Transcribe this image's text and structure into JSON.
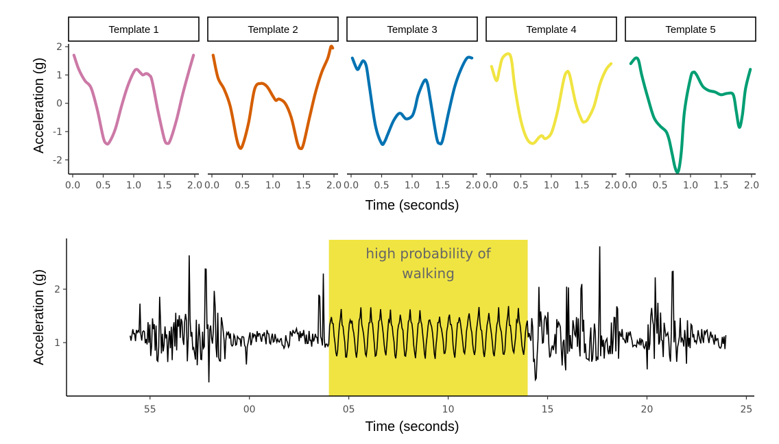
{
  "colors": {
    "template_1": "#CC79A7",
    "template_2": "#D55E00",
    "template_3": "#0072B2",
    "template_4": "#F0E442",
    "template_5": "#009E73",
    "highlight": "#F0E442",
    "signal": "#000000",
    "annotation_text": "#666666"
  },
  "chart_data": [
    {
      "type": "line",
      "facet": "templates",
      "ylabel": "Acceleration (g)",
      "xlabel": "Time (seconds)",
      "xlim": [
        0,
        2
      ],
      "ylim": [
        -2.5,
        2.1
      ],
      "x_ticks": [
        "0.0",
        "0.5",
        "1.0",
        "1.5",
        "2.0"
      ],
      "y_ticks": [
        "-2",
        "-1",
        "0",
        "1",
        "2"
      ],
      "grid": false,
      "panels": [
        {
          "name": "Template 1",
          "x": [
            0.02,
            0.1,
            0.2,
            0.3,
            0.4,
            0.5,
            0.55,
            0.6,
            0.7,
            0.8,
            0.9,
            1.0,
            1.05,
            1.1,
            1.15,
            1.2,
            1.25,
            1.3,
            1.4,
            1.5,
            1.55,
            1.6,
            1.7,
            1.8,
            1.9,
            1.98
          ],
          "y": [
            1.7,
            1.2,
            0.8,
            0.55,
            -0.2,
            -1.2,
            -1.42,
            -1.38,
            -0.9,
            -0.1,
            0.6,
            1.1,
            1.2,
            1.1,
            1.0,
            1.05,
            1.0,
            0.8,
            -0.3,
            -1.25,
            -1.42,
            -1.3,
            -0.6,
            0.3,
            1.1,
            1.7
          ]
        },
        {
          "name": "Template 2",
          "x": [
            0.02,
            0.1,
            0.2,
            0.3,
            0.4,
            0.45,
            0.5,
            0.6,
            0.7,
            0.8,
            0.9,
            1.0,
            1.05,
            1.1,
            1.2,
            1.3,
            1.4,
            1.45,
            1.5,
            1.6,
            1.7,
            1.8,
            1.9,
            1.95,
            1.98
          ],
          "y": [
            1.7,
            0.9,
            0.5,
            -0.1,
            -1.2,
            -1.55,
            -1.5,
            -0.7,
            0.5,
            0.7,
            0.6,
            0.25,
            0.1,
            0.15,
            0.0,
            -0.5,
            -1.4,
            -1.6,
            -1.45,
            -0.5,
            0.4,
            1.1,
            1.6,
            2.0,
            1.95
          ]
        },
        {
          "name": "Template 3",
          "x": [
            0.02,
            0.1,
            0.15,
            0.2,
            0.25,
            0.3,
            0.4,
            0.5,
            0.55,
            0.6,
            0.7,
            0.8,
            0.9,
            1.0,
            1.05,
            1.1,
            1.2,
            1.25,
            1.3,
            1.4,
            1.45,
            1.5,
            1.6,
            1.7,
            1.8,
            1.9,
            1.98
          ],
          "y": [
            1.6,
            1.2,
            1.35,
            1.5,
            1.3,
            0.6,
            -0.8,
            -1.42,
            -1.35,
            -1.1,
            -0.6,
            -0.35,
            -0.55,
            -0.45,
            -0.15,
            0.3,
            0.8,
            0.7,
            0.1,
            -1.2,
            -1.42,
            -1.3,
            -0.3,
            0.6,
            1.2,
            1.6,
            1.6
          ]
        },
        {
          "name": "Template 4",
          "x": [
            0.02,
            0.1,
            0.15,
            0.2,
            0.3,
            0.35,
            0.4,
            0.5,
            0.6,
            0.7,
            0.8,
            0.85,
            0.9,
            1.0,
            1.1,
            1.2,
            1.25,
            1.3,
            1.4,
            1.5,
            1.55,
            1.6,
            1.7,
            1.8,
            1.9,
            1.98
          ],
          "y": [
            1.3,
            0.8,
            1.2,
            1.6,
            1.75,
            1.5,
            0.6,
            -0.6,
            -1.25,
            -1.42,
            -1.2,
            -1.15,
            -1.25,
            -1.05,
            -0.3,
            0.8,
            1.1,
            1.0,
            0.0,
            -0.6,
            -0.65,
            -0.55,
            -0.1,
            0.7,
            1.2,
            1.4
          ]
        },
        {
          "name": "Template 5",
          "x": [
            0.02,
            0.1,
            0.15,
            0.2,
            0.3,
            0.4,
            0.5,
            0.6,
            0.65,
            0.7,
            0.75,
            0.8,
            0.85,
            0.9,
            1.0,
            1.05,
            1.1,
            1.2,
            1.3,
            1.4,
            1.5,
            1.6,
            1.7,
            1.75,
            1.8,
            1.85,
            1.9,
            1.98
          ],
          "y": [
            1.4,
            1.6,
            1.5,
            1.0,
            0.2,
            -0.5,
            -0.8,
            -1.0,
            -1.3,
            -1.8,
            -2.3,
            -2.4,
            -1.7,
            -0.3,
            0.9,
            1.1,
            1.0,
            0.6,
            0.45,
            0.4,
            0.3,
            0.35,
            0.3,
            -0.3,
            -0.85,
            -0.4,
            0.5,
            1.2
          ]
        }
      ]
    },
    {
      "type": "line",
      "facet": "signal",
      "ylabel": "Acceleration (g)",
      "xlabel": "Time (seconds)",
      "x_ticks": [
        "55",
        "00",
        "05",
        "10",
        "15",
        "20",
        "25"
      ],
      "x_tick_values": [
        -5,
        0,
        5,
        10,
        15,
        20,
        25
      ],
      "xlim": [
        -9.2,
        25.4
      ],
      "ylim": [
        0.0,
        2.95
      ],
      "y_ticks": [
        "1",
        "2"
      ],
      "grid": false,
      "highlight": {
        "x_start": 4.0,
        "x_end": 14.0,
        "label": "high probability of walking"
      },
      "signal_range": [
        -6.0,
        24.0
      ]
    }
  ]
}
